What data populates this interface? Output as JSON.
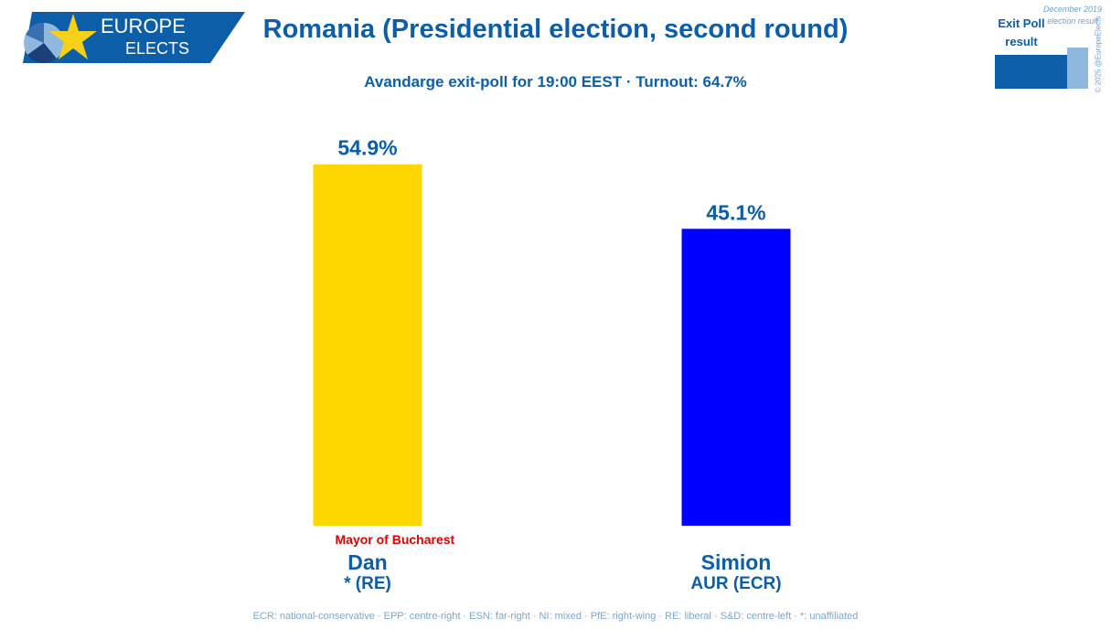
{
  "logo": {
    "line1": "EUROPE",
    "line2": "ELECTS"
  },
  "legend": {
    "current": "Exit Poll result",
    "previous": "December 2019 election result"
  },
  "copyright": "© 2025 @EuropeElects",
  "chart_data": {
    "type": "bar",
    "title": "Romania (Presidential election, second round)",
    "subtitle": "Avandarge exit-poll for 19:00 EEST · Turnout: 64.7%",
    "categories": [
      "Dan",
      "Simion"
    ],
    "category_sublabels": [
      "* (RE)",
      "AUR (ECR)"
    ],
    "values": [
      54.9,
      45.1
    ],
    "value_labels": [
      "54.9%",
      "45.1%"
    ],
    "colors": [
      "#FFD700",
      "#0000FF"
    ],
    "annotation": "Mayor of Bucharest",
    "footnote": "ECR: national-conservative · EPP: centre-right · ESN: far-right · NI: mixed · PfE: right-wing · RE: liberal · S&D: centre-left · *: unaffiliated"
  }
}
